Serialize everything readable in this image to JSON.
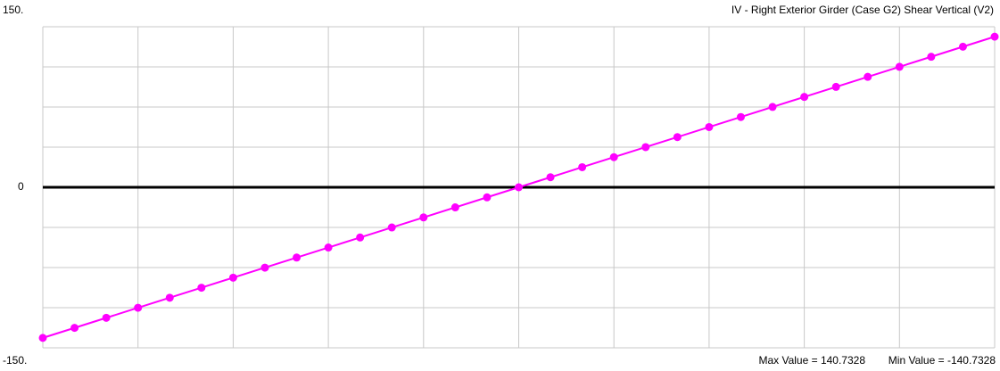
{
  "chart_data": {
    "type": "line",
    "title": "IV - Right Exterior Girder   (Case G2)   Shear Vertical  (V2)",
    "annotations": [
      "Max Value = 140.7328",
      "Min Value = -140.7328"
    ],
    "x": [
      0,
      1,
      2,
      3,
      4,
      5,
      6,
      7,
      8,
      9,
      10,
      11,
      12,
      13,
      14,
      15,
      16,
      17,
      18,
      19,
      20,
      21,
      22,
      23,
      24,
      25,
      26,
      27,
      28,
      29,
      30
    ],
    "xlim": [
      0,
      30
    ],
    "xgrid": [
      0,
      3,
      6,
      9,
      12,
      15,
      18,
      21,
      24,
      27,
      30
    ],
    "series": [
      {
        "name": "V2",
        "color": "#ff00ff",
        "values": [
          -140.7328,
          -131.3506,
          -121.9684,
          -112.5862,
          -103.2041,
          -93.8219,
          -84.4397,
          -75.0575,
          -65.6753,
          -56.2931,
          -46.9109,
          -37.5287,
          -28.1466,
          -18.7644,
          -9.3822,
          0,
          9.3822,
          18.7644,
          28.1466,
          37.5287,
          46.9109,
          56.2931,
          65.6753,
          75.0575,
          84.4397,
          93.8219,
          103.2041,
          112.5862,
          121.9684,
          131.3506,
          140.7328
        ]
      }
    ],
    "ylim": [
      -150,
      150
    ],
    "yticks": [
      {
        "value": 150,
        "label": "150."
      },
      0,
      {
        "value": -150,
        "label": "-150."
      }
    ],
    "ygrid": [
      -150,
      -112.5,
      -75,
      -37.5,
      0,
      37.5,
      75,
      112.5,
      150
    ],
    "grid": true
  }
}
